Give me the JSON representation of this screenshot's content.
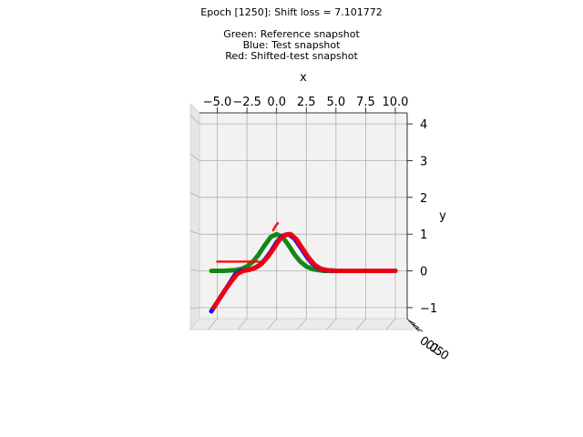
{
  "chart_data": {
    "type": "line",
    "projection": "3d",
    "title_lines": [
      "Epoch [1250]: Shift loss = 7.101772",
      "",
      "Green: Reference snapshot",
      "Blue: Test snapshot",
      "Red: Shifted-test snapshot"
    ],
    "xlabel": "x",
    "ylabel": "y",
    "xlim": [
      -6.5,
      11.0
    ],
    "ylim": [
      -1.3,
      4.3
    ],
    "x_ticks": [
      -5.0,
      -2.5,
      0.0,
      2.5,
      5.0,
      7.5,
      10.0
    ],
    "x_tick_labels": [
      "−5.0",
      "−2.5",
      "0.0",
      "2.5",
      "5.0",
      "7.5",
      "10.0"
    ],
    "y_ticks": [
      -1,
      0,
      1,
      2,
      3,
      4
    ],
    "y_tick_labels": [
      "−1",
      "0",
      "1",
      "2",
      "3",
      "4"
    ],
    "z_tick_labels": [
      "0.0",
      "0.5",
      "1.0"
    ],
    "grid": true,
    "series": [
      {
        "color": "#008000",
        "x": [
          -5.5,
          -5.0,
          -4.5,
          -4.0,
          -3.5,
          -3.0,
          -2.5,
          -2.0,
          -1.5,
          -1.0,
          -0.5,
          0.0,
          0.5,
          1.0,
          1.5,
          2.0,
          2.5,
          3.0,
          3.5,
          4.0,
          5.0,
          6.0,
          7.0,
          8.0,
          9.0,
          10.0
        ],
        "y": [
          0.0,
          0.0,
          0.0,
          0.01,
          0.02,
          0.05,
          0.12,
          0.25,
          0.45,
          0.7,
          0.92,
          1.0,
          0.92,
          0.7,
          0.45,
          0.25,
          0.12,
          0.05,
          0.02,
          0.0,
          0.0,
          0.0,
          0.0,
          0.0,
          0.0,
          0.0
        ]
      },
      {
        "color": "#0000ff",
        "x": [
          -5.5,
          -5.0,
          -4.5,
          -4.0,
          -3.5,
          -3.0,
          -2.5,
          -2.0,
          -1.5,
          -1.0,
          -0.5,
          0.0,
          0.5,
          1.0,
          1.5,
          2.0,
          2.5,
          3.0,
          3.5,
          4.0,
          5.0,
          6.0,
          7.0,
          8.0,
          9.0,
          10.0
        ],
        "y": [
          -1.1,
          -0.85,
          -0.6,
          -0.35,
          -0.1,
          0.0,
          0.02,
          0.06,
          0.14,
          0.3,
          0.52,
          0.78,
          0.95,
          1.0,
          0.88,
          0.65,
          0.4,
          0.2,
          0.08,
          0.02,
          0.0,
          0.0,
          0.0,
          0.0,
          0.0,
          0.0
        ]
      },
      {
        "color": "#ff0000",
        "x": [
          -5.3,
          -4.8,
          -4.3,
          -3.8,
          -3.3,
          -2.8,
          -2.3,
          -1.8,
          -1.3,
          -0.8,
          -0.3,
          0.2,
          0.7,
          1.2,
          1.7,
          2.2,
          2.7,
          3.2,
          3.7,
          4.2,
          5.0,
          6.0,
          7.0,
          8.0,
          9.0,
          10.0
        ],
        "y": [
          -1.0,
          -0.75,
          -0.5,
          -0.28,
          -0.08,
          0.0,
          0.03,
          0.08,
          0.18,
          0.36,
          0.58,
          0.83,
          0.98,
          1.0,
          0.85,
          0.6,
          0.36,
          0.17,
          0.06,
          0.02,
          0.0,
          0.0,
          0.0,
          0.0,
          0.0,
          0.0
        ]
      },
      {
        "color": "#ff0000",
        "x": [
          -5.0,
          -1.5
        ],
        "y": [
          0.25,
          0.25
        ]
      },
      {
        "color": "#ff0000",
        "x": [
          -0.3,
          -0.1,
          0.1
        ],
        "y": [
          1.1,
          1.22,
          1.3
        ]
      }
    ]
  }
}
